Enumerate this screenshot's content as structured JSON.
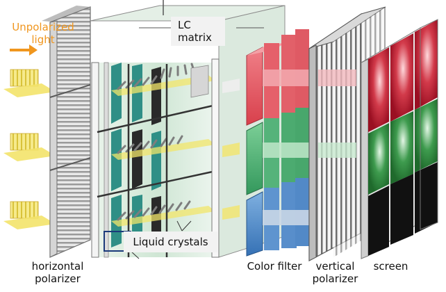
{
  "labels": {
    "unpolarized_light": [
      "Unpolarized",
      "light"
    ],
    "lc_matrix": [
      "LC",
      "matrix"
    ],
    "liquid_crystals": "Liquid crystals",
    "horizontal_polarizer": [
      "horizontal",
      "polarizer"
    ],
    "color_filter": "Color filter",
    "vertical_polarizer": [
      "vertical",
      "polarizer"
    ],
    "screen": "screen"
  },
  "colors": {
    "arrow": "#f0961e",
    "light_beam": "#f2e05c",
    "filter_red": "#e04a52",
    "filter_green": "#3fa56a",
    "filter_blue": "#3d7fc2",
    "screen_red": "#b0142a",
    "screen_green": "#2e8b3c",
    "screen_black": "#111111",
    "pixel_teal": "#2f8f86"
  }
}
